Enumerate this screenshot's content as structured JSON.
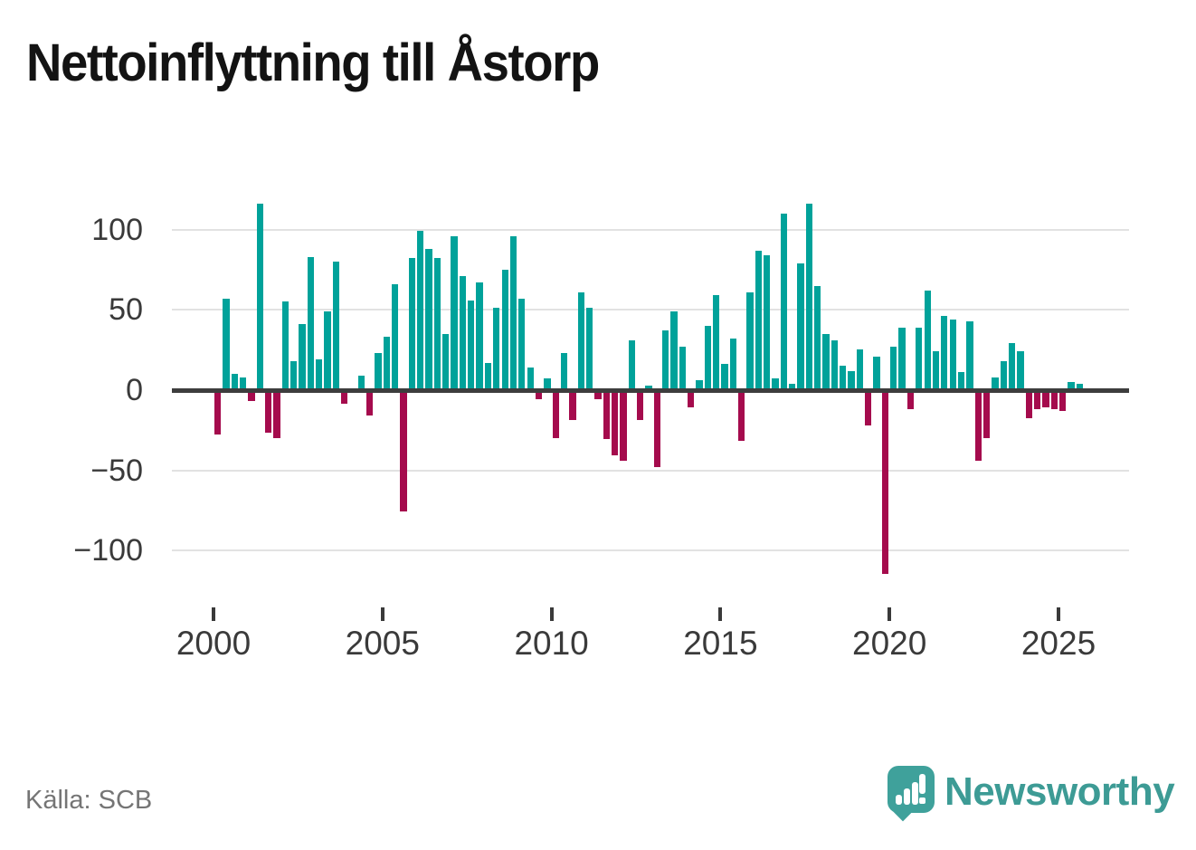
{
  "title": "Nettoinflyttning till Åstorp",
  "source": "Källa: SCB",
  "brand": "Newsworthy",
  "colors": {
    "positive_bar": "#00a29a",
    "negative_bar": "#a50b4d",
    "title_text": "#131313",
    "axis_text": "#3a3a3a",
    "gridline": "#e2e2e2",
    "zero_line": "#3d3d3d",
    "source_text": "#757575",
    "brand_teal": "#3d9b95"
  },
  "chart_data": {
    "type": "bar",
    "title": "Nettoinflyttning till Åstorp",
    "frequency": "quarterly",
    "start_period": "2000 Q1",
    "end_period": "2025 Q3",
    "x_tick_labels": [
      "2000",
      "2005",
      "2010",
      "2015",
      "2020",
      "2025"
    ],
    "x_tick_years": [
      2000,
      2005,
      2010,
      2015,
      2020,
      2025
    ],
    "y_tick_labels": [
      "100",
      "50",
      "0",
      "−50",
      "−100"
    ],
    "y_ticks": [
      100,
      50,
      0,
      -50,
      -100
    ],
    "ylim": [
      -120,
      122
    ],
    "grid": "horizontal",
    "legend": "none",
    "values": [
      -26,
      56,
      9,
      7,
      -5,
      115,
      -25,
      -28,
      54,
      17,
      40,
      82,
      18,
      48,
      79,
      -7,
      0,
      8,
      -14,
      22,
      32,
      65,
      -74,
      81,
      98,
      87,
      81,
      34,
      95,
      70,
      55,
      66,
      16,
      50,
      74,
      95,
      56,
      13,
      -4,
      6,
      -28,
      22,
      -17,
      60,
      50,
      -4,
      -29,
      -39,
      -42,
      30,
      -17,
      2,
      -46,
      36,
      48,
      26,
      -9,
      5,
      39,
      58,
      15,
      31,
      -30,
      60,
      86,
      83,
      6,
      109,
      3,
      78,
      115,
      64,
      34,
      30,
      14,
      11,
      24,
      -20,
      20,
      -113,
      26,
      38,
      -10,
      38,
      61,
      23,
      45,
      43,
      10,
      42,
      -42,
      -28,
      7,
      17,
      28,
      23,
      -16,
      -10,
      -9,
      -10,
      -11,
      4,
      3
    ]
  }
}
